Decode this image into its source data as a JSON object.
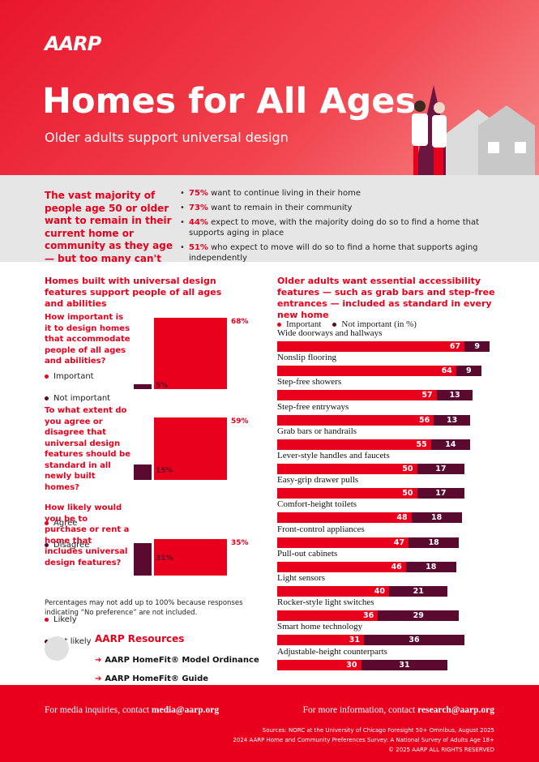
{
  "header": {
    "logo": "AARP",
    "title": "Homes for All Ages",
    "subtitle": "Older adults support universal design"
  },
  "intro": {
    "lead": "The vast majority of people age 50 or older want to remain in their current home or community as they age — but too many can't",
    "bullets": [
      {
        "pct": "75%",
        "text": "want to continue living in their home"
      },
      {
        "pct": "73%",
        "text": "want to remain in their community"
      },
      {
        "pct": "44%",
        "text": "expect to move, with the majority doing do so to find a home that supports aging in place"
      },
      {
        "pct": "51%",
        "text": "who expect to move will do so to find a home that supports aging independently"
      }
    ]
  },
  "left": {
    "heading": "Homes built with universal design features support people of all ages and abilities",
    "charts": [
      {
        "question": "How important is it to design homes that accommodate people of all ages and abilities?",
        "series": [
          {
            "name": "Important",
            "color": "#e8001c",
            "value": 68,
            "value_label": "68%"
          },
          {
            "name": "Not important",
            "color": "#5a0a2e",
            "value": 5,
            "value_label": "5%"
          }
        ]
      },
      {
        "question": "To what extent do you agree or disagree that universal design features should be standard in all newly built homes?",
        "series": [
          {
            "name": "Agree",
            "color": "#e8001c",
            "value": 59,
            "value_label": "59%"
          },
          {
            "name": "Disagree",
            "color": "#5a0a2e",
            "value": 15,
            "value_label": "15%"
          }
        ]
      },
      {
        "question": "How likely would you be to purchase or rent a home that includes universal design features?",
        "series": [
          {
            "name": "Likely",
            "color": "#e8001c",
            "value": 35,
            "value_label": "35%"
          },
          {
            "name": "Not likely",
            "color": "#5a0a2e",
            "value": 31,
            "value_label": "31%"
          }
        ]
      }
    ],
    "note": "Percentages may not add up to 100% because responses indicating “No preference” are not included."
  },
  "right": {
    "heading": "Older adults want essential accessibility features — such as grab bars and step-free entrances — included as standard in every new home",
    "categories": [
      "Wide doorways and hallways",
      "Nonslip flooring",
      "Step-free showers",
      "Step-free entryways",
      "Grab bars or handrails",
      "Lever-style handles and faucets",
      "Easy-grip drawer pulls",
      "Comfort-height toilets",
      "Front-control appliances",
      "Pull-out cabinets",
      "Light sensors",
      "Rocker-style light switches",
      "Smart home technology",
      "Adjustable-height counterparts"
    ],
    "series": [
      {
        "name": "Important",
        "color": "#e8001c",
        "values": [
          67,
          64,
          57,
          56,
          55,
          50,
          50,
          48,
          47,
          46,
          40,
          36,
          31,
          30
        ]
      },
      {
        "name": "Not important (in %)",
        "color": "#5a0a2e",
        "values": [
          9,
          9,
          13,
          13,
          14,
          17,
          17,
          18,
          18,
          18,
          21,
          29,
          36,
          31
        ]
      }
    ]
  },
  "resources": {
    "heading": "AARP Resources",
    "links": [
      "AARP HomeFit® Model Ordinance",
      "AARP HomeFit® Guide"
    ]
  },
  "footer": {
    "media_text": "For media inquiries, contact",
    "media_email": "media@aarp.org",
    "info_text": "For more information, contact",
    "info_email": "research@aarp.org",
    "sources": [
      "Sources: NORC at the University of Chicago Foresight 50+ Omnibus, August 2025",
      "2024 AARP Home and Community Preferences Survey: A National Survey of Adults Age 18+",
      "© 2025 AARP ALL RIGHTS RESERVED"
    ]
  }
}
